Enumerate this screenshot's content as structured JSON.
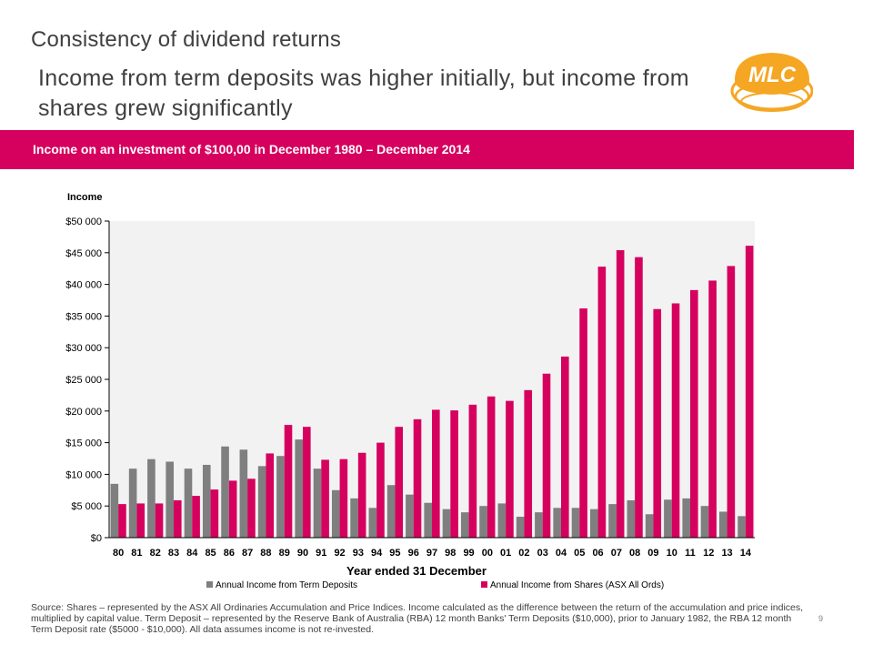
{
  "slide": {
    "section_title": "Consistency of dividend returns",
    "headline": "Income from term deposits was higher initially, but income from shares grew significantly",
    "banner": "Income on an investment of $100,00 in December 1980 – December 2014",
    "logo_text": "MLC",
    "source": "Source: Shares – represented by the ASX All Ordinaries Accumulation and Price Indices. Income calculated as the difference between the return of the accumulation and price indices, multiplied by capital value. Term Deposit – represented by the Reserve Bank of Australia (RBA) 12 month Banks' Term Deposits ($10,000), prior to January 1982, the RBA 12 month Term Deposit rate ($5000 - $10,000). All data assumes income is not re-invested.",
    "page_number": "9"
  },
  "colors": {
    "accent": "#d6005e",
    "term_deposits": "#7f7f7f",
    "shares": "#d6005e",
    "plot_bg": "#f2f2f2",
    "logo_orange": "#f5a623"
  },
  "chart_data": {
    "type": "bar",
    "ylabel": "Income",
    "xlabel": "Year ended 31 December",
    "ylim": [
      0,
      50000
    ],
    "y_ticks": [
      0,
      5000,
      10000,
      15000,
      20000,
      25000,
      30000,
      35000,
      40000,
      45000,
      50000
    ],
    "y_tick_labels": [
      "$0",
      "$5 000",
      "$10 000",
      "$15 000",
      "$20 000",
      "$25 000",
      "$30 000",
      "$35 000",
      "$40 000",
      "$45 000",
      "$50 000"
    ],
    "categories": [
      "80",
      "81",
      "82",
      "83",
      "84",
      "85",
      "86",
      "87",
      "88",
      "89",
      "90",
      "91",
      "92",
      "93",
      "94",
      "95",
      "96",
      "97",
      "98",
      "99",
      "00",
      "01",
      "02",
      "03",
      "04",
      "05",
      "06",
      "07",
      "08",
      "09",
      "10",
      "11",
      "12",
      "13",
      "14"
    ],
    "series": [
      {
        "name": "Annual Income from Term Deposits",
        "values": [
          8500,
          10900,
          12400,
          12000,
          10900,
          11500,
          14400,
          13900,
          11300,
          12900,
          15500,
          10900,
          7500,
          6200,
          4700,
          8300,
          6800,
          5500,
          4500,
          4000,
          5000,
          5400,
          3300,
          4000,
          4700,
          4700,
          4500,
          5300,
          5900,
          3700,
          6000,
          6200,
          5000,
          4100,
          3400
        ]
      },
      {
        "name": "Annual Income from Shares (ASX All Ords)",
        "values": [
          5300,
          5400,
          5400,
          5900,
          6600,
          7600,
          9000,
          9300,
          13300,
          17800,
          17500,
          12300,
          12400,
          13400,
          15000,
          17500,
          18700,
          20200,
          20100,
          21000,
          22300,
          21600,
          23300,
          25900,
          28600,
          36200,
          42800,
          45400,
          44300,
          36100,
          37000,
          39100,
          40600,
          42900,
          46100
        ]
      }
    ],
    "legend_position": "bottom",
    "grid": false
  }
}
